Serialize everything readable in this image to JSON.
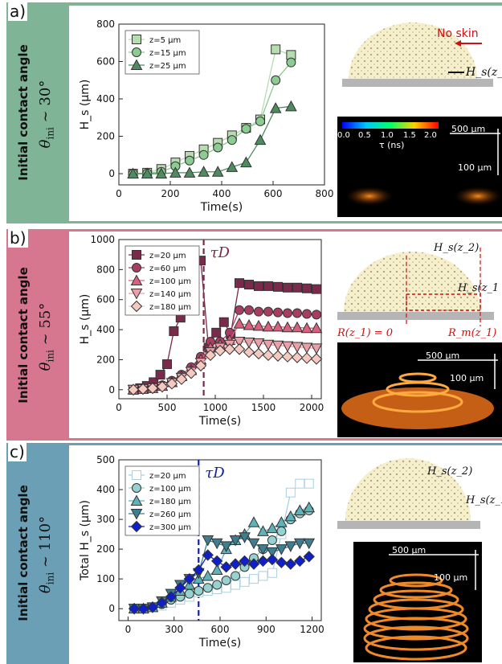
{
  "panels": [
    {
      "label": "a)",
      "color": "#7fb596",
      "title": "Initial contact angle",
      "theta_main": "θ",
      "theta_sub": "ini",
      "theta_value": "~ 30°",
      "sketch": {
        "annotation_no_skin": "No skin",
        "annotation_hs": "H_s(z_1",
        "scale_500": "500 µm",
        "scale_100": "100 µm"
      },
      "colorbar": {
        "ticks": [
          "0.0",
          "0.5",
          "1.0",
          "1.5",
          "2.0"
        ],
        "label": "τ (ns)"
      }
    },
    {
      "label": "b)",
      "color": "#d7778f",
      "title": "Initial contact angle",
      "theta_main": "θ",
      "theta_sub": "ini",
      "theta_value": "~ 55°",
      "sketch": {
        "hs_z2": "H_s(z_2)",
        "hs_z1": "H_s(z_1",
        "r_label": "R(z_1) = 0",
        "rm_label": "R_m(z_1)",
        "scale_500": "500 µm",
        "scale_100": "100 µm"
      },
      "tau_label": "τ_D"
    },
    {
      "label": "c)",
      "color": "#6a9fb5",
      "title": "Initial contact angle",
      "theta_main": "θ",
      "theta_sub": "ini",
      "theta_value": "~ 110°",
      "sketch": {
        "hs_z2": "H_s(z_2)",
        "hs_z1": "H_s(z_1",
        "scale_500": "500 µm",
        "scale_100": "100 µm"
      },
      "tau_label": "τ_D"
    }
  ],
  "chart_data": [
    {
      "type": "line",
      "xlabel": "Time(s)",
      "ylabel": "H_s (µm)",
      "xlim": [
        0,
        800
      ],
      "ylim": [
        -60,
        800
      ],
      "xticks": [
        0,
        200,
        400,
        600,
        800
      ],
      "yticks": [
        0,
        200,
        400,
        600,
        800
      ],
      "legend_position": "top-left",
      "series": [
        {
          "name": "z=5 µm",
          "marker": "square",
          "color": "#b6ddb0",
          "x": [
            55,
            110,
            165,
            220,
            275,
            330,
            385,
            440,
            495,
            550,
            610,
            670
          ],
          "y": [
            0,
            5,
            25,
            60,
            95,
            130,
            165,
            205,
            245,
            290,
            665,
            635
          ]
        },
        {
          "name": "z=15 µm",
          "marker": "circle",
          "color": "#8ccb92",
          "x": [
            55,
            110,
            165,
            220,
            275,
            330,
            385,
            440,
            495,
            550,
            610,
            670
          ],
          "y": [
            0,
            2,
            10,
            40,
            70,
            100,
            140,
            180,
            240,
            280,
            500,
            595
          ]
        },
        {
          "name": "z=25 µm",
          "marker": "triangle",
          "color": "#4f8a60",
          "x": [
            55,
            110,
            165,
            220,
            275,
            330,
            385,
            440,
            495,
            550,
            610,
            670
          ],
          "y": [
            0,
            0,
            0,
            5,
            5,
            10,
            10,
            35,
            60,
            180,
            350,
            360
          ]
        }
      ]
    },
    {
      "type": "line",
      "xlabel": "Time(s)",
      "ylabel": "H_s (µm)",
      "xlim": [
        0,
        2100
      ],
      "ylim": [
        -60,
        1000
      ],
      "xticks": [
        0,
        500,
        1000,
        1500,
        2000
      ],
      "yticks": [
        0,
        200,
        400,
        600,
        800,
        1000
      ],
      "tau_d": 880,
      "legend_position": "top-left",
      "series": [
        {
          "name": "z=20 µm",
          "marker": "square",
          "color": "#7a2a4a",
          "x": [
            150,
            220,
            290,
            360,
            430,
            500,
            570,
            640,
            710,
            780,
            850,
            930,
            1010,
            1090,
            1160,
            1250,
            1350,
            1450,
            1550,
            1650,
            1750,
            1850,
            1950,
            2050
          ],
          "y": [
            0,
            10,
            25,
            50,
            100,
            170,
            390,
            480,
            600,
            750,
            860,
            280,
            380,
            450,
            370,
            710,
            700,
            690,
            690,
            685,
            680,
            680,
            675,
            670
          ]
        },
        {
          "name": "z=60 µm",
          "marker": "circle",
          "color": "#a83d62",
          "x": [
            150,
            250,
            350,
            450,
            550,
            650,
            750,
            850,
            950,
            1050,
            1150,
            1250,
            1350,
            1450,
            1550,
            1650,
            1750,
            1850,
            1950,
            2050
          ],
          "y": [
            0,
            5,
            15,
            30,
            60,
            100,
            150,
            220,
            320,
            320,
            380,
            530,
            530,
            520,
            520,
            515,
            510,
            510,
            505,
            500
          ]
        },
        {
          "name": "z=100 µm",
          "marker": "triangle",
          "color": "#d9617e",
          "x": [
            150,
            250,
            350,
            450,
            550,
            650,
            750,
            850,
            950,
            1050,
            1150,
            1250,
            1350,
            1450,
            1550,
            1650,
            1750,
            1850,
            1950,
            2050
          ],
          "y": [
            0,
            5,
            10,
            25,
            50,
            90,
            130,
            200,
            280,
            300,
            330,
            440,
            430,
            425,
            420,
            420,
            415,
            415,
            410,
            410
          ]
        },
        {
          "name": "z=140 µm",
          "marker": "triangle-down",
          "color": "#e9a0a8",
          "x": [
            150,
            250,
            350,
            450,
            550,
            650,
            750,
            850,
            950,
            1050,
            1150,
            1250,
            1350,
            1450,
            1550,
            1650,
            1750,
            1850,
            1950,
            2050
          ],
          "y": [
            0,
            5,
            10,
            20,
            45,
            80,
            120,
            180,
            250,
            280,
            300,
            320,
            315,
            310,
            300,
            295,
            290,
            285,
            280,
            275
          ]
        },
        {
          "name": "z=180 µm",
          "marker": "diamond",
          "color": "#f3c9c0",
          "x": [
            150,
            250,
            350,
            450,
            550,
            650,
            750,
            850,
            950,
            1050,
            1150,
            1250,
            1350,
            1450,
            1550,
            1650,
            1750,
            1850,
            1950,
            2050
          ],
          "y": [
            0,
            5,
            10,
            20,
            40,
            70,
            110,
            160,
            230,
            260,
            270,
            270,
            250,
            240,
            230,
            225,
            220,
            215,
            210,
            205
          ]
        }
      ]
    },
    {
      "type": "line",
      "xlabel": "Time(s)",
      "ylabel": "Total H_s (µm)",
      "xlim": [
        -60,
        1260
      ],
      "ylim": [
        -40,
        500
      ],
      "xticks": [
        0,
        300,
        600,
        900,
        1200
      ],
      "yticks": [
        0,
        100,
        200,
        300,
        400,
        500
      ],
      "tau_d": 460,
      "legend_position": "top-left",
      "series": [
        {
          "name": "z=20 µm",
          "marker": "square-open",
          "color": "#a9cfe0",
          "x": [
            40,
            100,
            160,
            220,
            280,
            340,
            400,
            460,
            520,
            580,
            640,
            700,
            760,
            820,
            880,
            940,
            1000,
            1060,
            1120,
            1180
          ],
          "y": [
            0,
            0,
            5,
            10,
            20,
            30,
            40,
            55,
            60,
            65,
            70,
            80,
            90,
            100,
            110,
            120,
            250,
            390,
            420,
            420
          ]
        },
        {
          "name": "z=100 µm",
          "marker": "circle",
          "color": "#96d2d0",
          "x": [
            40,
            100,
            160,
            220,
            280,
            340,
            400,
            460,
            520,
            580,
            640,
            700,
            760,
            820,
            880,
            940,
            1000,
            1060,
            1120,
            1180
          ],
          "y": [
            0,
            0,
            5,
            15,
            30,
            40,
            50,
            60,
            70,
            80,
            95,
            110,
            140,
            170,
            200,
            230,
            260,
            300,
            320,
            330
          ]
        },
        {
          "name": "z=180 µm",
          "marker": "triangle",
          "color": "#5fb3b8",
          "x": [
            40,
            100,
            160,
            220,
            280,
            340,
            400,
            460,
            520,
            580,
            640,
            700,
            760,
            820,
            880,
            940,
            1000,
            1060,
            1120,
            1180
          ],
          "y": [
            0,
            0,
            5,
            20,
            40,
            60,
            80,
            100,
            110,
            130,
            200,
            230,
            250,
            290,
            260,
            270,
            290,
            310,
            330,
            340
          ]
        },
        {
          "name": "z=260 µm",
          "marker": "triangle-down",
          "color": "#3d7f90",
          "x": [
            40,
            100,
            160,
            220,
            280,
            340,
            400,
            460,
            520,
            580,
            640,
            700,
            760,
            820,
            880,
            940,
            1000,
            1060,
            1120,
            1180
          ],
          "y": [
            0,
            0,
            5,
            25,
            50,
            80,
            100,
            120,
            230,
            220,
            210,
            230,
            240,
            220,
            200,
            190,
            200,
            210,
            220,
            220
          ]
        },
        {
          "name": "z=300 µm",
          "marker": "diamond",
          "color": "#1020c8",
          "x": [
            40,
            100,
            160,
            220,
            280,
            340,
            400,
            460,
            520,
            580,
            640,
            700,
            760,
            820,
            880,
            940,
            1000,
            1060,
            1120,
            1180
          ],
          "y": [
            0,
            0,
            5,
            20,
            40,
            70,
            100,
            130,
            180,
            160,
            140,
            150,
            160,
            150,
            160,
            165,
            155,
            150,
            160,
            175
          ]
        }
      ]
    }
  ]
}
